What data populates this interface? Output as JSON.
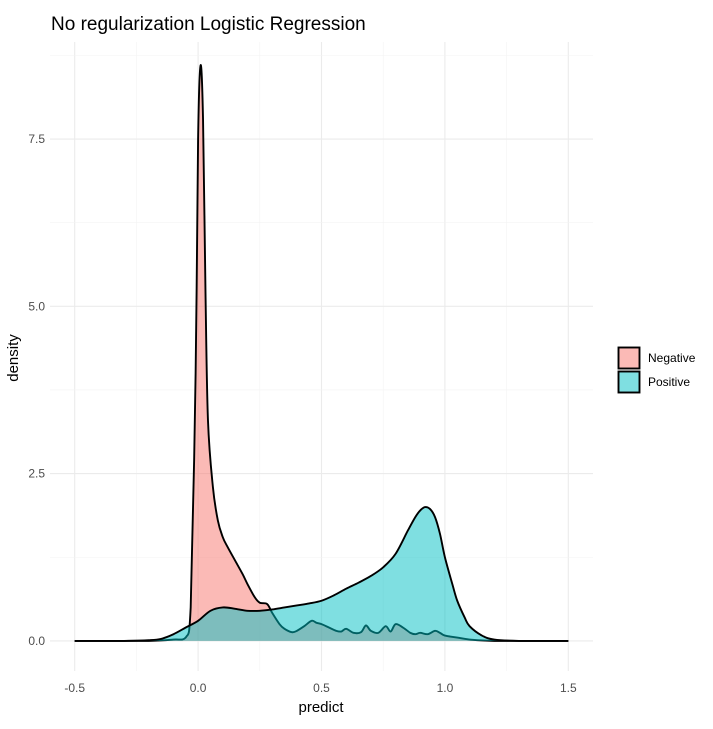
{
  "chart_data": {
    "type": "area",
    "title": "No regularization Logistic Regression",
    "xlabel": "predict",
    "ylabel": "density",
    "xlim": [
      -0.5,
      1.5
    ],
    "ylim": [
      0,
      8.6
    ],
    "x_ticks": [
      -0.5,
      0.0,
      0.5,
      1.0,
      1.5
    ],
    "x_tick_labels": [
      "-0.5",
      "0.0",
      "0.5",
      "1.0",
      "1.5"
    ],
    "y_ticks": [
      0,
      2.5,
      5.0,
      7.5
    ],
    "y_tick_labels": [
      "0.0",
      "2.5",
      "5.0",
      "7.5"
    ],
    "grid": true,
    "legend_position": "right",
    "series": [
      {
        "name": "Negative",
        "color": "#F8766D",
        "x": [
          -0.5,
          -0.2,
          -0.1,
          -0.05,
          -0.03,
          -0.01,
          0.0,
          0.01,
          0.02,
          0.03,
          0.04,
          0.06,
          0.08,
          0.1,
          0.12,
          0.15,
          0.18,
          0.2,
          0.23,
          0.25,
          0.28,
          0.3,
          0.33,
          0.35,
          0.38,
          0.4,
          0.43,
          0.46,
          0.48,
          0.5,
          0.53,
          0.56,
          0.58,
          0.6,
          0.63,
          0.66,
          0.68,
          0.7,
          0.73,
          0.76,
          0.78,
          0.8,
          0.83,
          0.86,
          0.88,
          0.9,
          0.93,
          0.96,
          0.98,
          1.0,
          1.05,
          1.1,
          1.2,
          1.5
        ],
        "y": [
          0,
          0,
          0.02,
          0.05,
          0.5,
          4.0,
          7.5,
          8.6,
          7.8,
          5.2,
          3.3,
          2.3,
          1.8,
          1.55,
          1.4,
          1.2,
          1.0,
          0.85,
          0.65,
          0.57,
          0.55,
          0.42,
          0.25,
          0.18,
          0.13,
          0.15,
          0.22,
          0.3,
          0.27,
          0.25,
          0.2,
          0.15,
          0.14,
          0.18,
          0.12,
          0.13,
          0.23,
          0.15,
          0.12,
          0.22,
          0.14,
          0.25,
          0.2,
          0.12,
          0.1,
          0.12,
          0.1,
          0.15,
          0.12,
          0.08,
          0.05,
          0.02,
          0,
          0
        ]
      },
      {
        "name": "Positive",
        "color": "#00BFC4",
        "x": [
          -0.5,
          -0.3,
          -0.2,
          -0.15,
          -0.1,
          -0.05,
          0.0,
          0.05,
          0.1,
          0.15,
          0.2,
          0.25,
          0.3,
          0.35,
          0.4,
          0.45,
          0.5,
          0.55,
          0.6,
          0.65,
          0.7,
          0.75,
          0.8,
          0.85,
          0.88,
          0.9,
          0.92,
          0.94,
          0.96,
          0.98,
          1.0,
          1.03,
          1.05,
          1.08,
          1.1,
          1.15,
          1.2,
          1.3,
          1.5
        ],
        "y": [
          0,
          0,
          0.01,
          0.03,
          0.1,
          0.2,
          0.3,
          0.45,
          0.5,
          0.48,
          0.45,
          0.45,
          0.47,
          0.5,
          0.53,
          0.56,
          0.6,
          0.68,
          0.78,
          0.87,
          0.97,
          1.1,
          1.3,
          1.65,
          1.85,
          1.95,
          2.0,
          1.97,
          1.85,
          1.6,
          1.25,
          0.85,
          0.6,
          0.35,
          0.22,
          0.08,
          0.02,
          0,
          0
        ]
      }
    ]
  }
}
